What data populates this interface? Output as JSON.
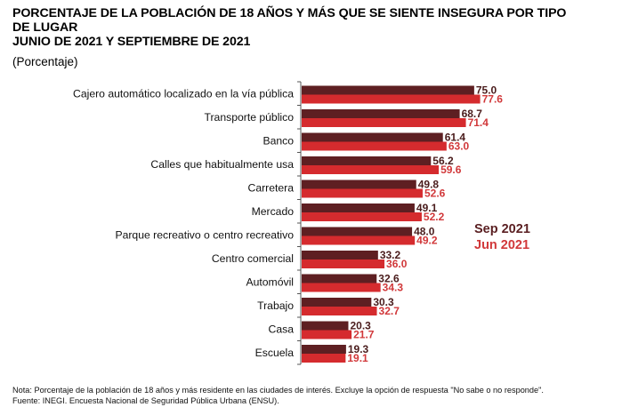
{
  "chart_data": {
    "type": "bar",
    "orientation": "horizontal",
    "title_lines": [
      "PORCENTAJE DE LA POBLACIÓN DE 18 AÑOS Y MÁS QUE SE SIENTE INSEGURA POR TIPO",
      "DE LUGAR",
      "JUNIO DE 2021 Y SEPTIEMBRE DE 2021"
    ],
    "subtitle": "(Porcentaje)",
    "xlabel": "",
    "ylabel": "",
    "xlim": [
      0,
      100
    ],
    "grid": false,
    "legend_position": "right",
    "categories": [
      "Cajero automático localizado en la vía pública",
      "Transporte público",
      "Banco",
      "Calles que habitualmente usa",
      "Carretera",
      "Mercado",
      "Parque recreativo o centro recreativo",
      "Centro comercial",
      "Automóvil",
      "Trabajo",
      "Casa",
      "Escuela"
    ],
    "series": [
      {
        "name": "Sep 2021",
        "color": "#5e1f22",
        "values": [
          75.0,
          68.7,
          61.4,
          56.2,
          49.8,
          49.1,
          48.0,
          33.2,
          32.6,
          30.3,
          20.3,
          19.3
        ],
        "labels": [
          "75.0",
          "68.7",
          "61.4",
          "56.2",
          "49.8",
          "49.1",
          "48.0",
          "33.2",
          "32.6",
          "30.3",
          "20.3",
          "19.3"
        ]
      },
      {
        "name": "Jun 2021",
        "color": "#d52b2e",
        "values": [
          77.6,
          71.4,
          63.0,
          59.6,
          52.6,
          52.2,
          49.2,
          36.0,
          34.3,
          32.7,
          21.7,
          19.1
        ],
        "labels": [
          "77.6",
          "71.4",
          "63.0",
          "59.6",
          "52.6",
          "52.2",
          "49.2",
          "36.0",
          "34.3",
          "32.7",
          "21.7",
          "19.1"
        ]
      }
    ],
    "label_colors": {
      "sep": "#4a1c1c",
      "jun": "#d1383a"
    }
  },
  "footnotes": {
    "nota": "Nota: Porcentaje de la población de 18 años y más residente en las ciudades de interés. Excluye la opción de respuesta \"No sabe o no responde\".",
    "fuente": "Fuente: INEGI. Encuesta Nacional de Seguridad Pública Urbana (ENSU)."
  }
}
